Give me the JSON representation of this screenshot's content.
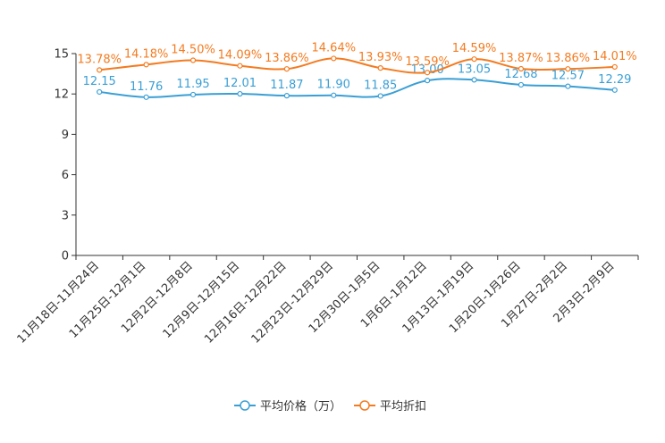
{
  "chart_data": {
    "type": "line",
    "title": "",
    "xlabel": "",
    "ylabel": "",
    "ylim": [
      0,
      15
    ],
    "yticks": [
      "0",
      "3",
      "6",
      "9",
      "12",
      "15"
    ],
    "categories": [
      "11月18日-11月24日",
      "11月25日-12月1日",
      "12月2日-12月8日",
      "12月9日-12月15日",
      "12月16日-12月22日",
      "12月23日-12月29日",
      "12月30日-1月5日",
      "1月6日-1月12日",
      "1月13日-1月19日",
      "1月20日-1月26日",
      "1月27日-2月2日",
      "2月3日-2月9日"
    ],
    "series": [
      {
        "name": "平均价格（万）",
        "color": "#3a9fd5",
        "values": [
          12.15,
          11.76,
          11.95,
          12.01,
          11.87,
          11.9,
          11.85,
          13.0,
          13.05,
          12.68,
          12.57,
          12.29
        ],
        "labels": [
          "12.15",
          "11.76",
          "11.95",
          "12.01",
          "11.87",
          "11.90",
          "11.85",
          "13.00",
          "13.05",
          "12.68",
          "12.57",
          "12.29"
        ]
      },
      {
        "name": "平均折扣",
        "color": "#f47b20",
        "values": [
          13.78,
          14.18,
          14.5,
          14.09,
          13.86,
          14.64,
          13.93,
          13.59,
          14.59,
          13.87,
          13.86,
          14.01
        ],
        "labels": [
          "13.78%",
          "14.18%",
          "14.50%",
          "14.09%",
          "13.86%",
          "14.64%",
          "13.93%",
          "13.59%",
          "14.59%",
          "13.87%",
          "13.86%",
          "14.01%"
        ]
      }
    ],
    "legend_position": "bottom-center"
  }
}
